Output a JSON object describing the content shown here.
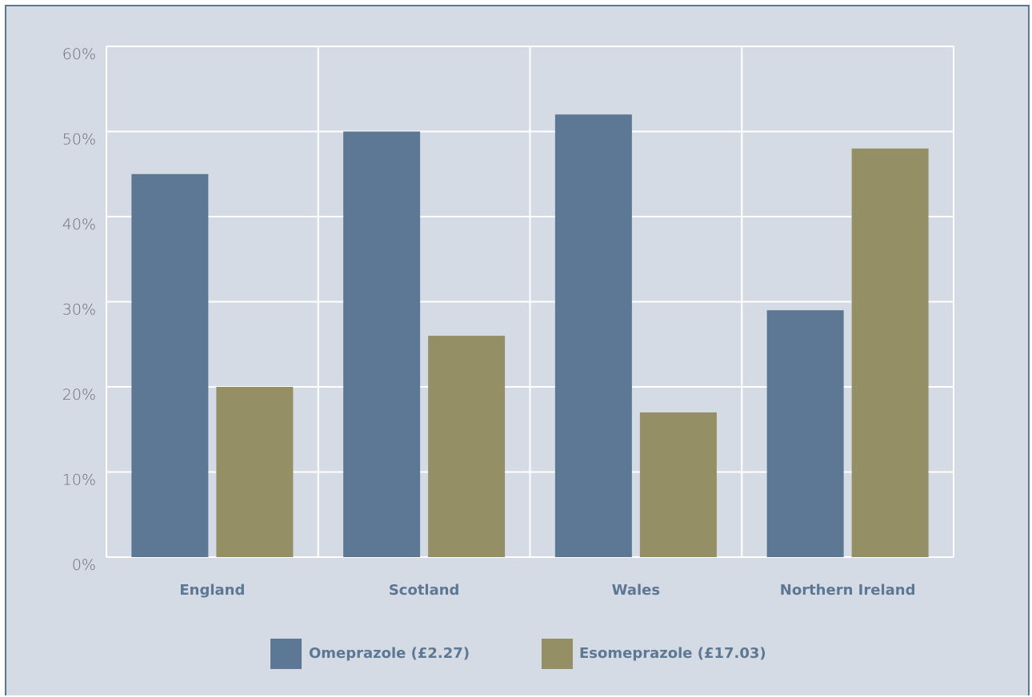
{
  "chart_data": {
    "type": "bar",
    "categories": [
      "England",
      "Scotland",
      "Wales",
      "Northern Ireland"
    ],
    "series": [
      {
        "name": "Omeprazole (£2.27)",
        "values": [
          45,
          50,
          52,
          29
        ],
        "color": "#5c7894"
      },
      {
        "name": "Esomeprazole (£17.03)",
        "values": [
          20,
          26,
          17,
          48
        ],
        "color": "#958f65"
      }
    ],
    "yticks": [
      "0%",
      "10%",
      "20%",
      "30%",
      "40%",
      "50%",
      "60%"
    ],
    "ylim": [
      0,
      60
    ],
    "grid": true,
    "legend_position": "bottom",
    "background": "#d5dbe4",
    "gridline_color": "#ffffff"
  }
}
